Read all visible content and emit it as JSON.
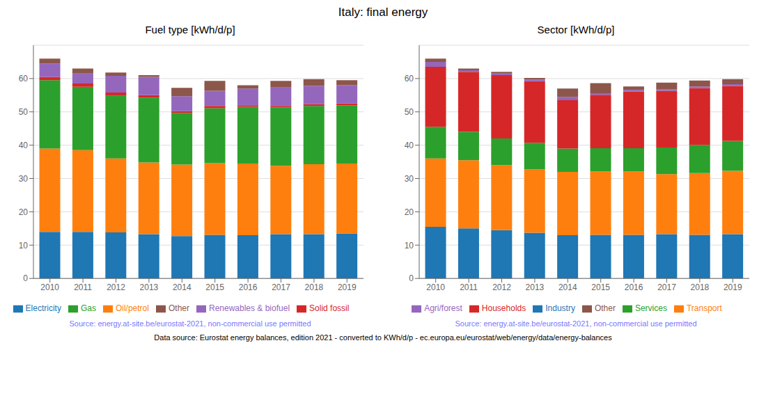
{
  "title": "Italy: final energy",
  "annotations": [
    "Data source: Eurostat energy balances, edition 2021 - converted to KWh/d/p - ec.europa.eu/eurostat/web/energy/data/energy-balances"
  ],
  "chart_data": [
    {
      "type": "bar",
      "stacked": true,
      "title": "Fuel type [kWh/d/p]",
      "annotations": [
        "Source: energy.at-site.be/eurostat-2021, non-commercial use permitted"
      ],
      "categories": [
        "2010",
        "2011",
        "2012",
        "2013",
        "2014",
        "2015",
        "2016",
        "2017",
        "2018",
        "2019"
      ],
      "series": [
        {
          "name": "Electricity",
          "color": "#1f77b4",
          "values": [
            14.0,
            14.0,
            13.8,
            13.3,
            12.7,
            13.1,
            13.0,
            13.3,
            13.3,
            13.5
          ]
        },
        {
          "name": "Oil/petrol",
          "color": "#ff7f0e",
          "values": [
            25.0,
            24.5,
            22.2,
            21.5,
            21.5,
            21.5,
            21.5,
            20.5,
            21.0,
            21.0
          ]
        },
        {
          "name": "Gas",
          "color": "#2ca02c",
          "values": [
            20.5,
            19.0,
            18.8,
            19.5,
            15.5,
            16.5,
            17.0,
            17.5,
            17.5,
            17.5
          ]
        },
        {
          "name": "Solid fossil",
          "color": "#d62728",
          "values": [
            1.0,
            1.0,
            1.0,
            0.7,
            0.5,
            0.7,
            0.5,
            0.5,
            0.5,
            0.5
          ]
        },
        {
          "name": "Renewables & biofuel",
          "color": "#9467bd",
          "values": [
            4.0,
            3.0,
            5.0,
            5.5,
            4.5,
            4.5,
            5.0,
            5.5,
            5.5,
            5.5
          ]
        },
        {
          "name": "Other",
          "color": "#8c564b",
          "values": [
            1.5,
            1.5,
            1.0,
            0.5,
            2.5,
            3.0,
            1.0,
            2.0,
            2.0,
            1.5
          ]
        }
      ],
      "ylim": [
        0,
        70
      ],
      "yticks": [
        0,
        10,
        20,
        30,
        40,
        50,
        60
      ],
      "grid": true,
      "legend": "bottom"
    },
    {
      "type": "bar",
      "stacked": true,
      "title": "Sector [kWh/d/p]",
      "annotations": [
        "Source: energy.at-site.be/eurostat-2021, non-commercial use permitted"
      ],
      "categories": [
        "2010",
        "2011",
        "2012",
        "2013",
        "2014",
        "2015",
        "2016",
        "2017",
        "2018",
        "2019"
      ],
      "series": [
        {
          "name": "Industry",
          "color": "#1f77b4",
          "values": [
            15.5,
            15.0,
            14.5,
            13.7,
            13.0,
            13.1,
            13.1,
            13.3,
            13.1,
            13.3
          ]
        },
        {
          "name": "Transport",
          "color": "#ff7f0e",
          "values": [
            20.5,
            20.5,
            19.5,
            19.0,
            19.0,
            19.0,
            19.0,
            18.0,
            18.5,
            19.0
          ]
        },
        {
          "name": "Services",
          "color": "#2ca02c",
          "values": [
            9.5,
            8.5,
            8.0,
            8.0,
            7.0,
            7.0,
            7.0,
            8.0,
            8.5,
            9.0
          ]
        },
        {
          "name": "Households",
          "color": "#d62728",
          "values": [
            18.0,
            18.0,
            19.0,
            18.5,
            14.5,
            16.0,
            17.0,
            17.0,
            17.0,
            16.5
          ]
        },
        {
          "name": "Agri/forest",
          "color": "#9467bd",
          "values": [
            1.5,
            0.5,
            0.5,
            0.5,
            1.0,
            0.5,
            0.5,
            0.5,
            0.5,
            0.5
          ]
        },
        {
          "name": "Other",
          "color": "#8c564b",
          "values": [
            1.0,
            0.5,
            0.5,
            0.5,
            2.5,
            3.0,
            1.0,
            2.0,
            1.8,
            1.5
          ]
        }
      ],
      "ylim": [
        0,
        70
      ],
      "yticks": [
        0,
        10,
        20,
        30,
        40,
        50,
        60
      ],
      "grid": true,
      "legend": "bottom"
    }
  ]
}
